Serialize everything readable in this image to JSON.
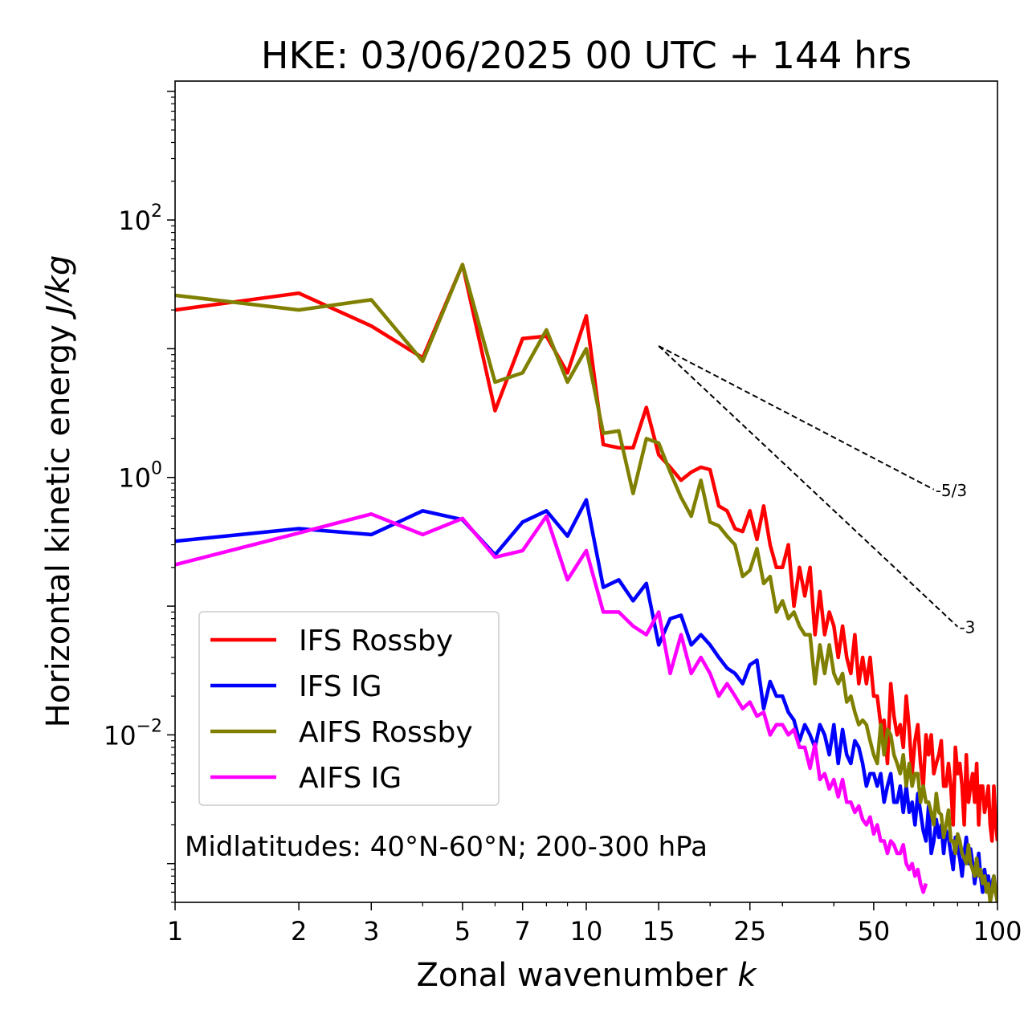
{
  "chart_data": {
    "type": "line",
    "title": "HKE: 03/06/2025 00 UTC + 144 hrs",
    "xlabel": "Zonal wavenumber",
    "xlabel_var": "k",
    "ylabel": "Horizontal kinetic energy",
    "ylabel_unit": "J/kg",
    "xscale": "log",
    "yscale": "log",
    "xlim": [
      1,
      100
    ],
    "ylim": [
      0.0005,
      1200
    ],
    "x_ticks": [
      1,
      2,
      3,
      5,
      7,
      10,
      15,
      25,
      50,
      100
    ],
    "x_tick_labels": [
      "1",
      "2",
      "3",
      "5",
      "7",
      "10",
      "15",
      "25",
      "50",
      "100"
    ],
    "y_ticks": [
      0.01,
      1,
      100
    ],
    "y_tick_labels": [
      {
        "base": "10",
        "exp": "−2"
      },
      {
        "base": "10",
        "exp": "0"
      },
      {
        "base": "10",
        "exp": "2"
      }
    ],
    "grid": false,
    "legend_position": "lower-left",
    "annotation": "Midlatitudes: 40°N-60°N; 200-300 hPa",
    "reference_lines": [
      {
        "label": "-5/3",
        "slope": -1.6667,
        "x0": 15,
        "y0": 10.5,
        "x1": 70,
        "color": "#000000",
        "style": "dashed"
      },
      {
        "label": "-3",
        "slope": -3,
        "x0": 15,
        "y0": 10.5,
        "x1": 80,
        "color": "#000000",
        "style": "dashed"
      }
    ],
    "series": [
      {
        "name": "IFS Rossby",
        "color": "#ff0000",
        "x": [
          1,
          2,
          3,
          4,
          5,
          6,
          7,
          8,
          9,
          10,
          11,
          12,
          13,
          14,
          15,
          16,
          17,
          18,
          19,
          20,
          21,
          22,
          23,
          24,
          25,
          26,
          27,
          28,
          29,
          30,
          31,
          32,
          33,
          34,
          35,
          36,
          37,
          38,
          39,
          40,
          41,
          42,
          43,
          44,
          45,
          46,
          47,
          48,
          49,
          50,
          51,
          52,
          53,
          54,
          55,
          56,
          57,
          58,
          59,
          60,
          61,
          62,
          63,
          64,
          65,
          66,
          67,
          68,
          69,
          70,
          71,
          72,
          73,
          74,
          75,
          76,
          77,
          78,
          79,
          80,
          81,
          82,
          83,
          84,
          85,
          86,
          87,
          88,
          89,
          90,
          91,
          92,
          93,
          94,
          95,
          96,
          97,
          98,
          99,
          100
        ],
        "y": [
          20,
          27,
          15,
          8.5,
          45,
          3.3,
          12,
          12.5,
          6.5,
          18,
          1.8,
          1.7,
          1.7,
          3.5,
          1.5,
          1.2,
          0.95,
          1.1,
          1.2,
          1.15,
          0.6,
          0.55,
          0.4,
          0.38,
          0.55,
          0.33,
          0.6,
          0.3,
          0.2,
          0.2,
          0.3,
          0.1,
          0.2,
          0.12,
          0.2,
          0.06,
          0.13,
          0.06,
          0.09,
          0.07,
          0.04,
          0.07,
          0.04,
          0.03,
          0.06,
          0.025,
          0.04,
          0.025,
          0.04,
          0.02,
          0.02,
          0.012,
          0.013,
          0.006,
          0.025,
          0.014,
          0.01,
          0.012,
          0.008,
          0.02,
          0.011,
          0.005,
          0.009,
          0.012,
          0.006,
          0.004,
          0.01,
          0.007,
          0.01,
          0.005,
          0.006,
          0.007,
          0.009,
          0.004,
          0.004,
          0.006,
          0.004,
          0.002,
          0.008,
          0.005,
          0.006,
          0.004,
          0.002,
          0.007,
          0.003,
          0.004,
          0.005,
          0.003,
          0.006,
          0.002,
          0.004,
          0.004,
          0.0025,
          0.003,
          0.004,
          0.002,
          0.0015,
          0.004,
          0.002,
          0.0015
        ]
      },
      {
        "name": "IFS IG",
        "color": "#0000ff",
        "x": [
          1,
          2,
          3,
          4,
          5,
          6,
          7,
          8,
          9,
          10,
          11,
          12,
          13,
          14,
          15,
          16,
          17,
          18,
          19,
          20,
          21,
          22,
          23,
          24,
          25,
          26,
          27,
          28,
          29,
          30,
          31,
          32,
          33,
          34,
          35,
          36,
          37,
          38,
          39,
          40,
          41,
          42,
          43,
          44,
          45,
          46,
          47,
          48,
          49,
          50,
          51,
          52,
          53,
          54,
          55,
          56,
          57,
          58,
          59,
          60,
          61,
          62,
          63,
          64,
          65,
          66,
          67,
          68,
          69,
          70,
          71,
          72,
          73,
          74,
          75,
          76,
          77,
          78,
          79,
          80,
          81,
          82,
          83,
          84,
          85,
          86,
          87,
          88,
          89,
          90,
          91,
          92,
          93,
          94,
          95,
          96,
          97,
          98,
          99,
          100
        ],
        "y": [
          0.32,
          0.4,
          0.36,
          0.55,
          0.47,
          0.25,
          0.45,
          0.55,
          0.35,
          0.67,
          0.14,
          0.16,
          0.11,
          0.15,
          0.05,
          0.08,
          0.085,
          0.05,
          0.06,
          0.05,
          0.04,
          0.033,
          0.03,
          0.025,
          0.035,
          0.038,
          0.016,
          0.026,
          0.02,
          0.02,
          0.015,
          0.013,
          0.009,
          0.012,
          0.01,
          0.008,
          0.012,
          0.01,
          0.007,
          0.012,
          0.006,
          0.011,
          0.007,
          0.006,
          0.009,
          0.008,
          0.006,
          0.004,
          0.005,
          0.005,
          0.004,
          0.005,
          0.003,
          0.004,
          0.005,
          0.003,
          0.003,
          0.004,
          0.0025,
          0.004,
          0.0025,
          0.003,
          0.002,
          0.0035,
          0.0025,
          0.0018,
          0.0015,
          0.0028,
          0.0012,
          0.0015,
          0.0022,
          0.0016,
          0.002,
          0.0012,
          0.0018,
          0.0016,
          0.0012,
          0.0009,
          0.0016,
          0.0013,
          0.0011,
          0.0008,
          0.0012,
          0.0016,
          0.001,
          0.0013,
          0.001,
          0.0007,
          0.0009,
          0.0012,
          0.0008,
          0.0006,
          0.0009,
          0.0007,
          0.0008,
          0.0006,
          0.0007,
          0.0008,
          0.0006,
          0.0005
        ]
      },
      {
        "name": "AIFS Rossby",
        "color": "#808000",
        "x": [
          1,
          2,
          3,
          4,
          5,
          6,
          7,
          8,
          9,
          10,
          11,
          12,
          13,
          14,
          15,
          16,
          17,
          18,
          19,
          20,
          21,
          22,
          23,
          24,
          25,
          26,
          27,
          28,
          29,
          30,
          31,
          32,
          33,
          34,
          35,
          36,
          37,
          38,
          39,
          40,
          41,
          42,
          43,
          44,
          45,
          46,
          47,
          48,
          49,
          50,
          51,
          52,
          53,
          54,
          55,
          56,
          57,
          58,
          59,
          60,
          61,
          62,
          63,
          64,
          65,
          66,
          67,
          68,
          69,
          70,
          71,
          72,
          73,
          74,
          75,
          76,
          77,
          78,
          79,
          80,
          81,
          82,
          83,
          84,
          85,
          86,
          87,
          88,
          89,
          90,
          91,
          92,
          93,
          94,
          95,
          96,
          97,
          98,
          99,
          100
        ],
        "y": [
          26,
          20,
          24,
          8.0,
          45,
          5.5,
          6.5,
          14,
          5.5,
          10,
          2.2,
          2.3,
          0.75,
          2.0,
          1.85,
          1.1,
          0.7,
          0.5,
          0.95,
          0.45,
          0.42,
          0.35,
          0.3,
          0.17,
          0.19,
          0.28,
          0.15,
          0.17,
          0.09,
          0.11,
          0.08,
          0.09,
          0.07,
          0.06,
          0.06,
          0.025,
          0.05,
          0.03,
          0.05,
          0.03,
          0.025,
          0.03,
          0.018,
          0.02,
          0.015,
          0.012,
          0.013,
          0.012,
          0.009,
          0.007,
          0.006,
          0.012,
          0.007,
          0.011,
          0.01,
          0.007,
          0.006,
          0.005,
          0.007,
          0.004,
          0.006,
          0.004,
          0.005,
          0.005,
          0.003,
          0.004,
          0.003,
          0.003,
          0.0025,
          0.002,
          0.0035,
          0.0025,
          0.0024,
          0.0016,
          0.002,
          0.0026,
          0.0015,
          0.0015,
          0.0012,
          0.0017,
          0.0015,
          0.0012,
          0.0011,
          0.001,
          0.0014,
          0.001,
          0.0009,
          0.0008,
          0.0011,
          0.0008,
          0.0009,
          0.0007,
          0.0008,
          0.0006,
          0.0007,
          0.0005,
          0.0006,
          0.0008,
          0.0006,
          0.0005
        ]
      },
      {
        "name": "AIFS IG",
        "color": "#ff00ff",
        "x": [
          1,
          2,
          3,
          4,
          5,
          6,
          7,
          8,
          9,
          10,
          11,
          12,
          13,
          14,
          15,
          16,
          17,
          18,
          19,
          20,
          21,
          22,
          23,
          24,
          25,
          26,
          27,
          28,
          29,
          30,
          31,
          32,
          33,
          34,
          35,
          36,
          37,
          38,
          39,
          40,
          41,
          42,
          43,
          44,
          45,
          46,
          47,
          48,
          49,
          50,
          51,
          52,
          53,
          54,
          55,
          56,
          57,
          58,
          59,
          60,
          61,
          62,
          63,
          64,
          65,
          66,
          67
        ],
        "y": [
          0.21,
          0.37,
          0.52,
          0.36,
          0.48,
          0.24,
          0.27,
          0.5,
          0.16,
          0.27,
          0.09,
          0.09,
          0.07,
          0.06,
          0.09,
          0.03,
          0.06,
          0.03,
          0.04,
          0.03,
          0.02,
          0.025,
          0.02,
          0.016,
          0.018,
          0.014,
          0.015,
          0.01,
          0.012,
          0.012,
          0.01,
          0.011,
          0.008,
          0.008,
          0.0055,
          0.0085,
          0.0045,
          0.005,
          0.0038,
          0.0045,
          0.0033,
          0.0045,
          0.003,
          0.003,
          0.0025,
          0.0028,
          0.0022,
          0.002,
          0.0023,
          0.0017,
          0.002,
          0.0015,
          0.0015,
          0.0012,
          0.0015,
          0.0014,
          0.0012,
          0.0012,
          0.0014,
          0.001,
          0.0009,
          0.001,
          0.0008,
          0.0009,
          0.0007,
          0.0006,
          0.0007
        ]
      }
    ]
  }
}
